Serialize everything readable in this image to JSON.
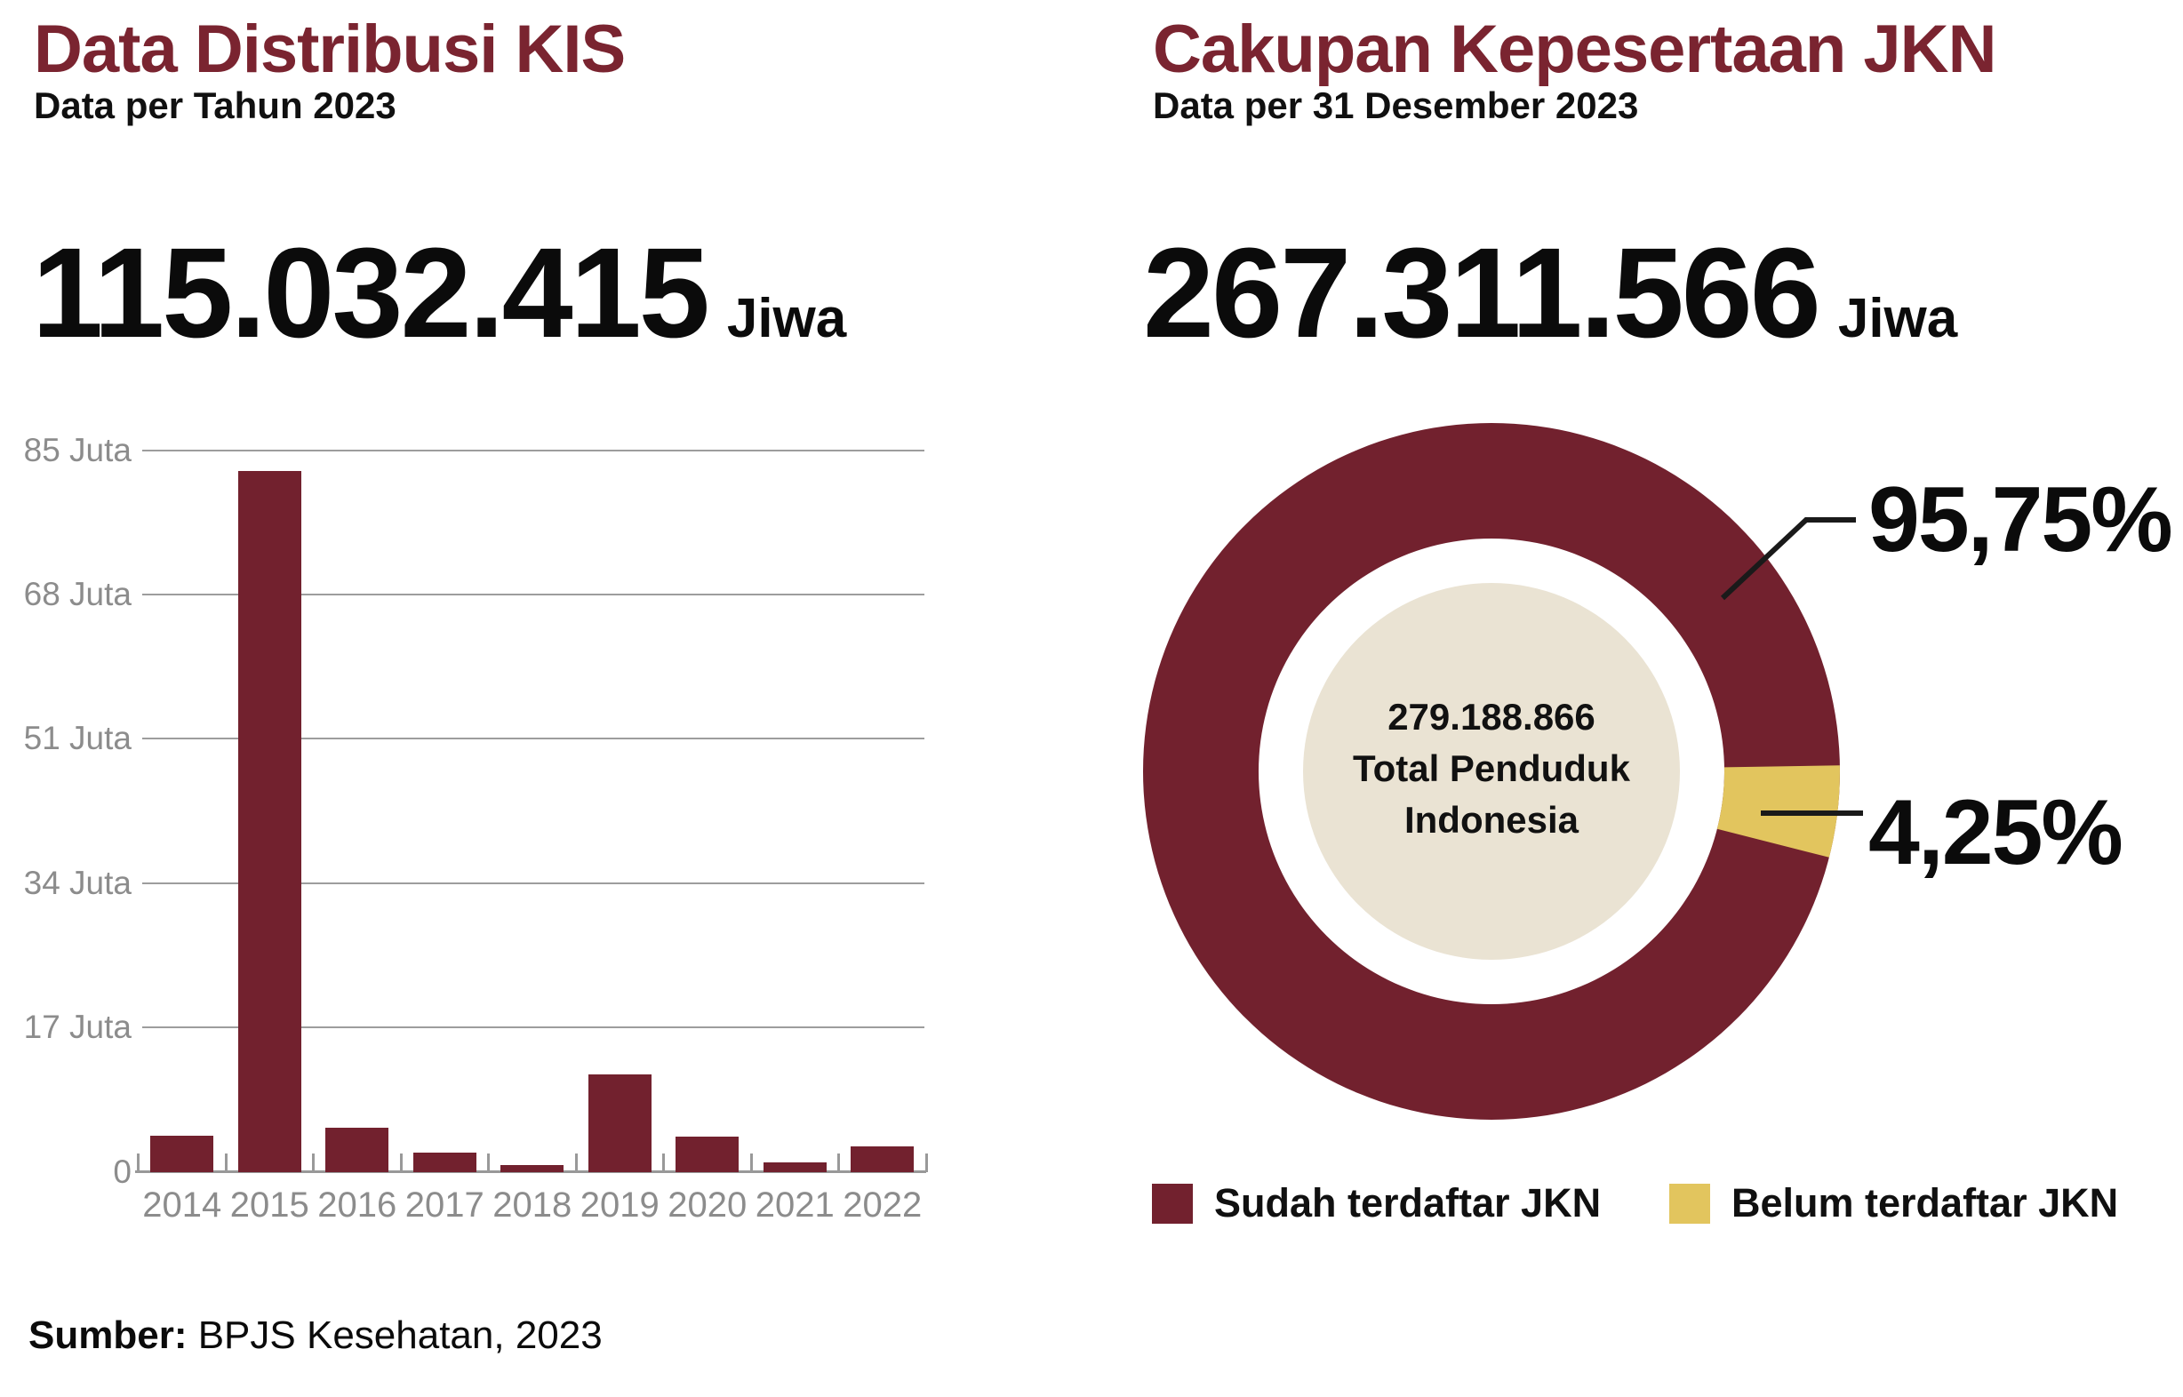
{
  "colors": {
    "maroon": "#72212E",
    "title_maroon": "#7A2430",
    "yellow": "#E2C55E",
    "beige": "#EAE3D3",
    "gridline_gray": "#9D9D9D",
    "axis_text_gray": "#8C8C8C",
    "callout_black": "#1A1A1A"
  },
  "left": {
    "title": "Data Distribusi KIS",
    "subtitle": "Data per Tahun 2023",
    "headline": {
      "value": "115.032.415",
      "unit": "Jiwa"
    }
  },
  "right": {
    "title": "Cakupan Kepesertaan JKN",
    "subtitle": "Data per 31 Desember 2023",
    "headline": {
      "value": "267.311.566",
      "unit": "Jiwa"
    },
    "donut_center": {
      "line1": "279.188.866",
      "line2": "Total Penduduk",
      "line3": "Indonesia"
    },
    "callout_labels": {
      "registered_pct": "95,75%",
      "unregistered_pct": "4,25%"
    },
    "legend": [
      {
        "label": "Sudah terdaftar JKN",
        "color_key": "maroon"
      },
      {
        "label": "Belum terdaftar JKN",
        "color_key": "yellow"
      }
    ]
  },
  "source": {
    "prefix": "Sumber:",
    "text": " BPJS Kesehatan, 2023"
  },
  "chart_data": [
    {
      "type": "bar",
      "title": "Data Distribusi KIS",
      "subtitle": "Data per Tahun 2023",
      "unit": "Juta Jiwa (millions)",
      "categories": [
        "2014",
        "2015",
        "2016",
        "2017",
        "2018",
        "2019",
        "2020",
        "2021",
        "2022"
      ],
      "values": [
        4.3,
        82.6,
        5.2,
        2.3,
        0.8,
        11.5,
        4.2,
        1.2,
        3.0
      ],
      "total_label": "115.032.415 Jiwa",
      "yticks": [
        {
          "label": "85 Juta",
          "value": 85
        },
        {
          "label": "68 Juta",
          "value": 68
        },
        {
          "label": "51 Juta",
          "value": 51
        },
        {
          "label": "34 Juta",
          "value": 34
        },
        {
          "label": "17 Juta",
          "value": 17
        },
        {
          "label": "0",
          "value": 0
        }
      ],
      "ylim": [
        0,
        85
      ],
      "grid": true,
      "bar_color": "#72212E"
    },
    {
      "type": "pie",
      "variant": "donut",
      "title": "Cakupan Kepesertaan JKN",
      "subtitle": "Data per 31 Desember 2023",
      "total_label": "267.311.566 Jiwa",
      "center_label": "279.188.866 Total Penduduk Indonesia",
      "slices": [
        {
          "label": "Sudah terdaftar JKN",
          "value": 95.75,
          "display": "95,75%",
          "color": "#72212E"
        },
        {
          "label": "Belum terdaftar JKN",
          "value": 4.25,
          "display": "4,25%",
          "color": "#E2C55E"
        }
      ],
      "start_angle_deg_from_3oclock": -1,
      "legend_position": "bottom"
    }
  ]
}
